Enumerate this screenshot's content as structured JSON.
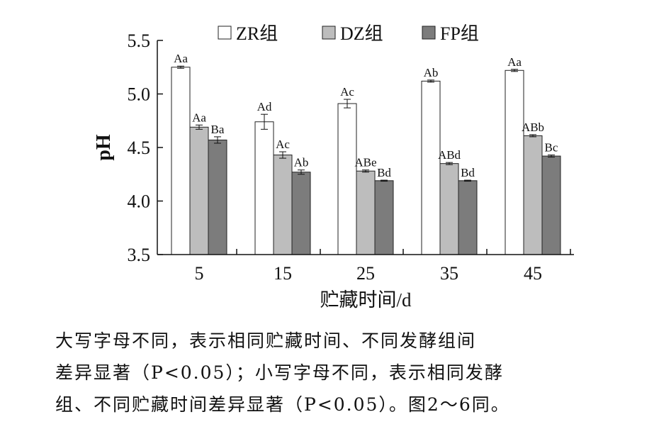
{
  "chart_data": {
    "type": "bar",
    "title": "",
    "xlabel": "贮藏时间/d",
    "ylabel": "pH",
    "categories": [
      "5",
      "15",
      "25",
      "35",
      "45"
    ],
    "ylim": [
      3.5,
      5.5
    ],
    "yticks": [
      "3.5",
      "4.0",
      "4.5",
      "5.0",
      "5.5"
    ],
    "legend_position": "top",
    "grid": false,
    "series": [
      {
        "name": "ZR组",
        "color": "#ffffff",
        "values": [
          5.25,
          4.74,
          4.91,
          5.12,
          5.22
        ],
        "errors": [
          0.01,
          0.07,
          0.04,
          0.01,
          0.01
        ],
        "labels": [
          "Aa",
          "Ad",
          "Ac",
          "Ab",
          "Aa"
        ]
      },
      {
        "name": "DZ组",
        "color": "#bdbdbd",
        "values": [
          4.69,
          4.43,
          4.28,
          4.35,
          4.61
        ],
        "errors": [
          0.02,
          0.03,
          0.01,
          0.01,
          0.01
        ],
        "labels": [
          "Aa",
          "Ac",
          "ABe",
          "ABd",
          "ABb"
        ]
      },
      {
        "name": "FP组",
        "color": "#7c7c7c",
        "values": [
          4.57,
          4.27,
          4.19,
          4.19,
          4.42
        ],
        "errors": [
          0.03,
          0.02,
          0.005,
          0.005,
          0.01
        ],
        "labels": [
          "Ba",
          "Ab",
          "Bd",
          "Bd",
          "Bc"
        ]
      }
    ]
  },
  "caption": [
    "大写字母不同，表示相同贮藏时间、不同发酵组间",
    "差异显著（P<0.05）；小写字母不同，表示相同发酵",
    "组、不同贮藏时间差异显著（P<0.05）。图2～6同。"
  ]
}
